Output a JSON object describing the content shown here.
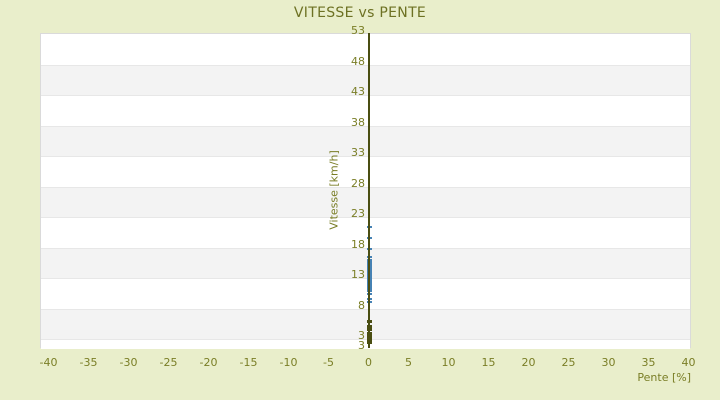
{
  "header": {
    "title": "VITESSE vs PENTE"
  },
  "chart_data": {
    "type": "scatter",
    "title": "VITESSE vs PENTE",
    "xlabel": "Pente [%]",
    "ylabel": "Vitesse [km/h]",
    "xticks": [
      -40,
      -35,
      -30,
      -25,
      -20,
      -15,
      -10,
      -5,
      0,
      5,
      10,
      15,
      20,
      25,
      30,
      35,
      40
    ],
    "yticks": [
      53,
      48,
      43,
      38,
      33,
      28,
      23,
      18,
      13,
      8,
      3
    ],
    "y_axis_bottom_edge_label": "3",
    "xlim": [
      -41,
      40.3
    ],
    "ylim": [
      1.4,
      53
    ],
    "grid": "alternating horizontal bands, no vertical gridlines",
    "legend_position": "none",
    "axis_line_x": 0,
    "series": [
      {
        "name": "vitesse-points",
        "marker": "dash",
        "color": "#4682b4",
        "x_constant": 0,
        "y_values": [
          21.4,
          19.6,
          17.8,
          16.5,
          15.9,
          15.6,
          15.3,
          15.0,
          14.7,
          14.4,
          14.1,
          13.8,
          13.5,
          13.2,
          12.9,
          12.6,
          12.3,
          12.0,
          11.7,
          11.4,
          11.1,
          10.9,
          10.3,
          9.6,
          9.1
        ]
      },
      {
        "name": "vitesse-points-low",
        "marker": "square",
        "color": "#4a4e12",
        "x_constant": 0,
        "y_values": [
          5.8,
          5.1,
          4.5,
          3.9,
          3.4,
          2.9,
          2.4
        ]
      }
    ]
  },
  "colors": {
    "background": "#e9eecb",
    "band_light": "#ffffff",
    "band_dark": "#f3f3f3",
    "plot_border": "#dadada",
    "band_divider": "#e7e7e7",
    "axis_line": "#4a4e12",
    "tick_text": "#7a7e26",
    "title_text": "#6d7123",
    "point_blue": "#4682b4",
    "point_dark": "#4a4e12"
  }
}
